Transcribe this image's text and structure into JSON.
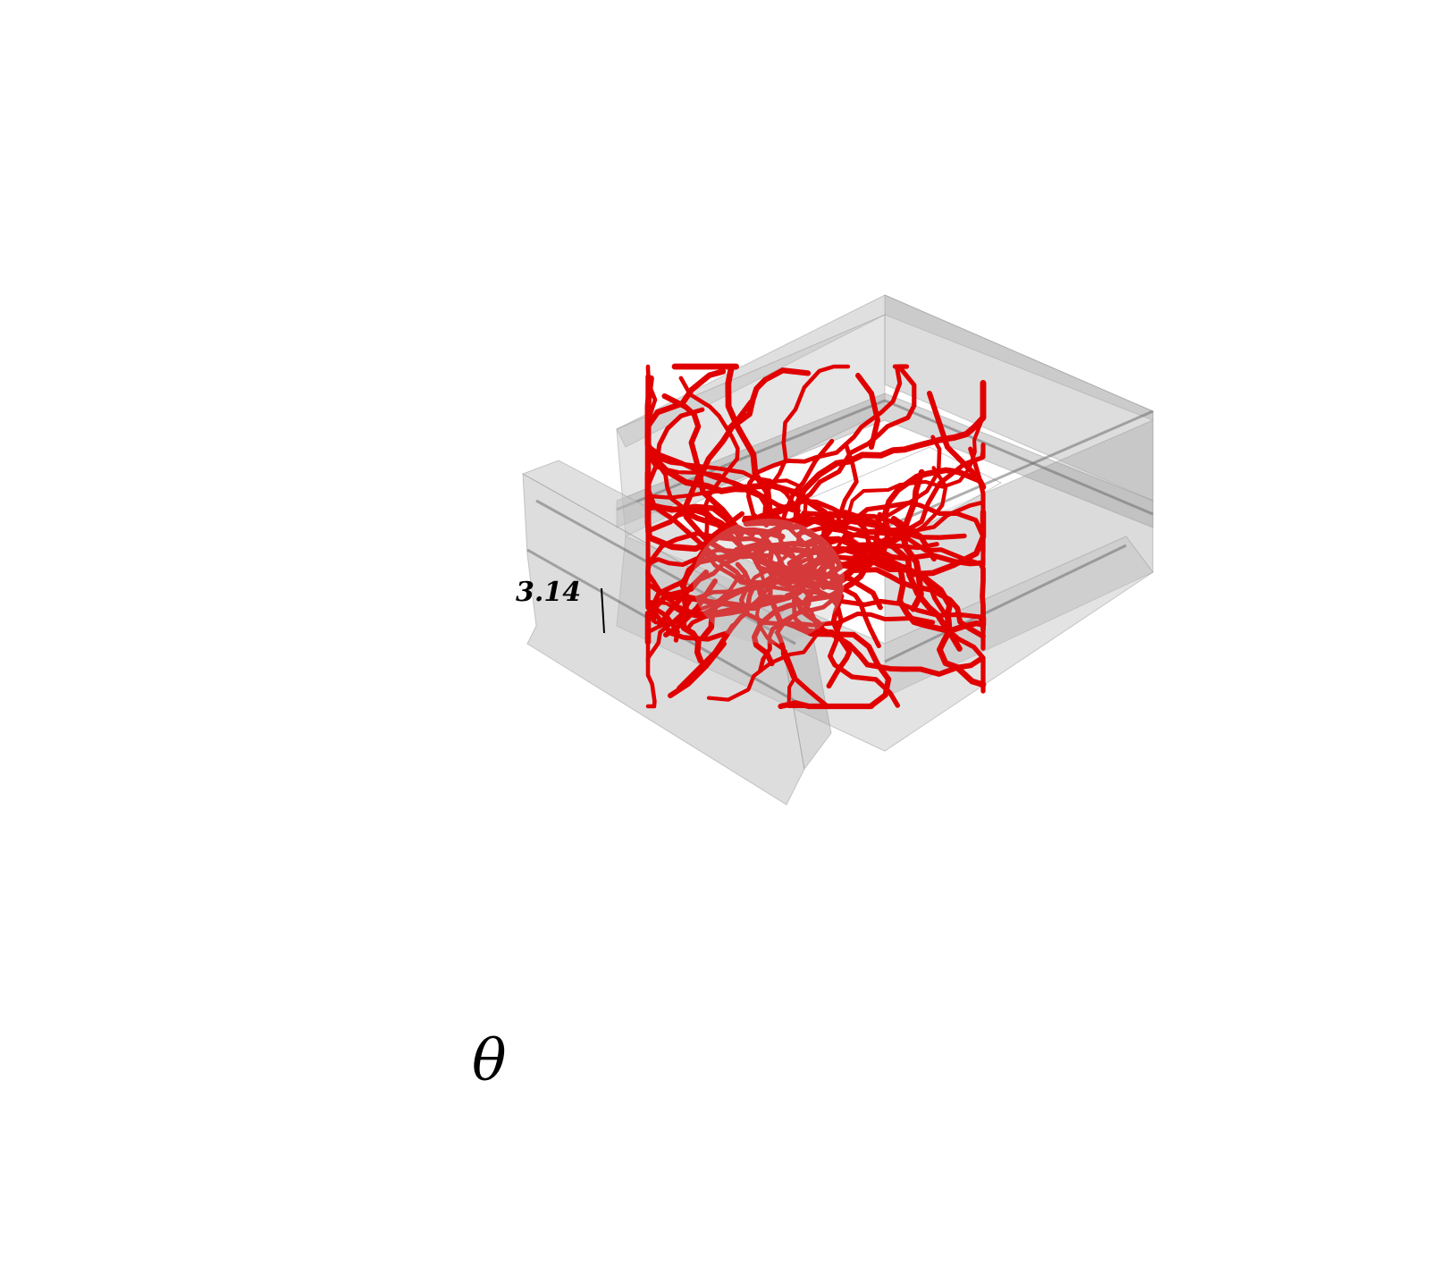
{
  "figure": {
    "tick_label": "3.14",
    "axis_label": "θ"
  },
  "colors": {
    "background": "#ffffff",
    "surface": "#bdbdbd",
    "surface_dark": "#9e9e9e",
    "trajectories": "#e00000",
    "text": "#000000"
  }
}
